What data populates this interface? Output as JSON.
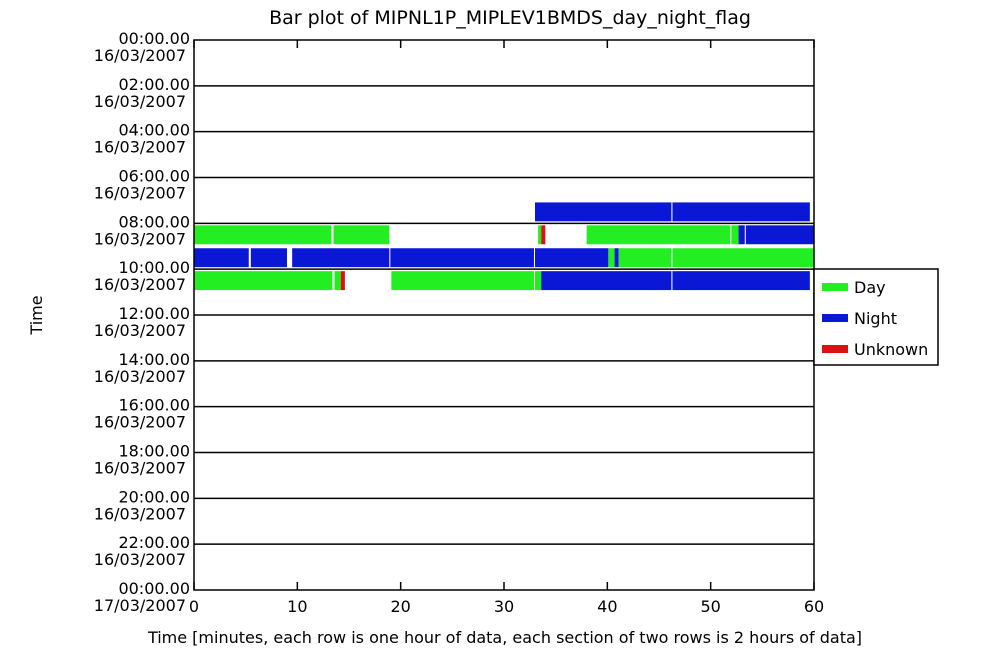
{
  "chart_data": {
    "type": "bar",
    "title": "Bar plot of MIPNL1P_MIPLEV1BMDS_day_night_flag",
    "xlabel": "Time [minutes, each row is one hour of data, each section of two rows is 2 hours of data]",
    "ylabel": "Time",
    "xlim": [
      0,
      60
    ],
    "x_ticks": [
      "0",
      "10",
      "20",
      "30",
      "40",
      "50",
      "60"
    ],
    "y_ticks": [
      {
        "time": "00:00.00",
        "date": "16/03/2007"
      },
      {
        "time": "02:00.00",
        "date": "16/03/2007"
      },
      {
        "time": "04:00.00",
        "date": "16/03/2007"
      },
      {
        "time": "06:00.00",
        "date": "16/03/2007"
      },
      {
        "time": "08:00.00",
        "date": "16/03/2007"
      },
      {
        "time": "10:00.00",
        "date": "16/03/2007"
      },
      {
        "time": "12:00.00",
        "date": "16/03/2007"
      },
      {
        "time": "14:00.00",
        "date": "16/03/2007"
      },
      {
        "time": "16:00.00",
        "date": "16/03/2007"
      },
      {
        "time": "18:00.00",
        "date": "16/03/2007"
      },
      {
        "time": "20:00.00",
        "date": "16/03/2007"
      },
      {
        "time": "22:00.00",
        "date": "16/03/2007"
      },
      {
        "time": "00:00.00",
        "date": "17/03/2007"
      }
    ],
    "legend_position": "right",
    "series": [
      {
        "name": "Day",
        "color": "#22ee22"
      },
      {
        "name": "Night",
        "color": "#0a17d4"
      },
      {
        "name": "Unknown",
        "color": "#dd1111"
      }
    ],
    "rows": [
      {
        "hour_start": 7,
        "segments": [
          {
            "start": 33.0,
            "end": 46.2,
            "flag": "Night"
          },
          {
            "start": 46.3,
            "end": 59.6,
            "flag": "Night"
          }
        ]
      },
      {
        "hour_start": 8,
        "segments": [
          {
            "start": 0.0,
            "end": 13.3,
            "flag": "Day"
          },
          {
            "start": 13.5,
            "end": 18.9,
            "flag": "Day"
          },
          {
            "start": 33.3,
            "end": 33.6,
            "flag": "Day"
          },
          {
            "start": 33.6,
            "end": 34.0,
            "flag": "Unknown"
          },
          {
            "start": 38.0,
            "end": 51.9,
            "flag": "Day"
          },
          {
            "start": 52.0,
            "end": 52.7,
            "flag": "Day"
          },
          {
            "start": 52.7,
            "end": 53.3,
            "flag": "Night"
          },
          {
            "start": 53.4,
            "end": 60.0,
            "flag": "Night"
          }
        ]
      },
      {
        "hour_start": 9,
        "segments": [
          {
            "start": 0.0,
            "end": 5.3,
            "flag": "Night"
          },
          {
            "start": 5.5,
            "end": 9.0,
            "flag": "Night"
          },
          {
            "start": 9.5,
            "end": 18.9,
            "flag": "Night"
          },
          {
            "start": 19.0,
            "end": 32.9,
            "flag": "Night"
          },
          {
            "start": 33.0,
            "end": 40.1,
            "flag": "Night"
          },
          {
            "start": 40.1,
            "end": 40.7,
            "flag": "Day"
          },
          {
            "start": 40.7,
            "end": 41.1,
            "flag": "Night"
          },
          {
            "start": 41.1,
            "end": 46.2,
            "flag": "Day"
          },
          {
            "start": 46.3,
            "end": 60.0,
            "flag": "Day"
          }
        ]
      },
      {
        "hour_start": 10,
        "segments": [
          {
            "start": 0.0,
            "end": 13.4,
            "flag": "Day"
          },
          {
            "start": 13.6,
            "end": 14.2,
            "flag": "Day"
          },
          {
            "start": 14.2,
            "end": 14.6,
            "flag": "Unknown"
          },
          {
            "start": 19.1,
            "end": 32.9,
            "flag": "Day"
          },
          {
            "start": 33.0,
            "end": 33.6,
            "flag": "Day"
          },
          {
            "start": 33.6,
            "end": 46.2,
            "flag": "Night"
          },
          {
            "start": 46.3,
            "end": 59.6,
            "flag": "Night"
          }
        ]
      }
    ]
  }
}
